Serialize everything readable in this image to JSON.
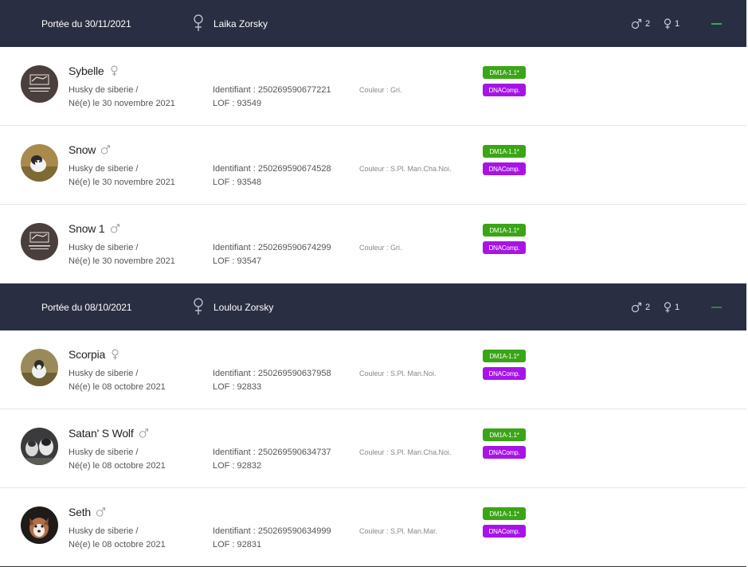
{
  "colors": {
    "header_bg": "#2a2e42",
    "badge_dm": "#3aa516",
    "badge_dna": "#a614e8",
    "toggle": "#2eae54"
  },
  "litters": [
    {
      "title": "Portée du 30/11/2021",
      "mother": "Laika Zorsky",
      "males": "2",
      "females": "1",
      "puppies": [
        {
          "name": "Sybelle",
          "sex": "female-icon",
          "breed": "Husky de siberie /",
          "born": "Né(e) le 30 novembre 2021",
          "ident": "Identifiant : 250269590677221",
          "lof": "LOF : 93549",
          "color": "Couleur : Gri.",
          "badge1": "DM1A-1.1*",
          "badge2": "DNAComp.",
          "avatar": "centrale-canine-logo"
        },
        {
          "name": "Snow",
          "sex": "male-icon",
          "breed": "Husky de siberie /",
          "born": "Né(e) le 30 novembre 2021",
          "ident": "Identifiant : 250269590674528",
          "lof": "LOF : 93548",
          "color": "Couleur : S.Pl. Man.Cha.Noi.",
          "badge1": "DM1A-1.1*",
          "badge2": "DNAComp.",
          "avatar": "puppy-photo"
        },
        {
          "name": "Snow 1",
          "sex": "male-icon",
          "breed": "Husky de siberie /",
          "born": "Né(e) le 30 novembre 2021",
          "ident": "Identifiant : 250269590674299",
          "lof": "LOF : 93547",
          "color": "Couleur : Gri.",
          "badge1": "DM1A-1.1*",
          "badge2": "DNAComp.",
          "avatar": "centrale-canine-logo"
        }
      ]
    },
    {
      "title": "Portée du 08/10/2021",
      "mother": "Loulou Zorsky",
      "males": "2",
      "females": "1",
      "puppies": [
        {
          "name": "Scorpia",
          "sex": "female-icon",
          "breed": "Husky de siberie /",
          "born": "Né(e) le 08 octobre 2021",
          "ident": "Identifiant : 250269590637958",
          "lof": "LOF : 92833",
          "color": "Couleur : S.Pl. Man.Noi.",
          "badge1": "DM1A-1.1*",
          "badge2": "DNAComp.",
          "avatar": "puppy-photo"
        },
        {
          "name": "Satan' S Wolf",
          "sex": "male-icon",
          "breed": "Husky de siberie /",
          "born": "Né(e) le 08 octobre 2021",
          "ident": "Identifiant : 250269590634737",
          "lof": "LOF : 92832",
          "color": "Couleur : S.Pl. Man.Cha.Noi.",
          "badge1": "DM1A-1.1*",
          "badge2": "DNAComp.",
          "avatar": "puppy-photo"
        },
        {
          "name": "Seth",
          "sex": "male-icon",
          "breed": "Husky de siberie /",
          "born": "Né(e) le 08 octobre 2021",
          "ident": "Identifiant : 250269590634999",
          "lof": "LOF : 92831",
          "color": "Couleur : S.Pl. Man.Mar.",
          "badge1": "DM1A-1.1*",
          "badge2": "DNAComp.",
          "avatar": "puppy-photo"
        }
      ]
    }
  ]
}
